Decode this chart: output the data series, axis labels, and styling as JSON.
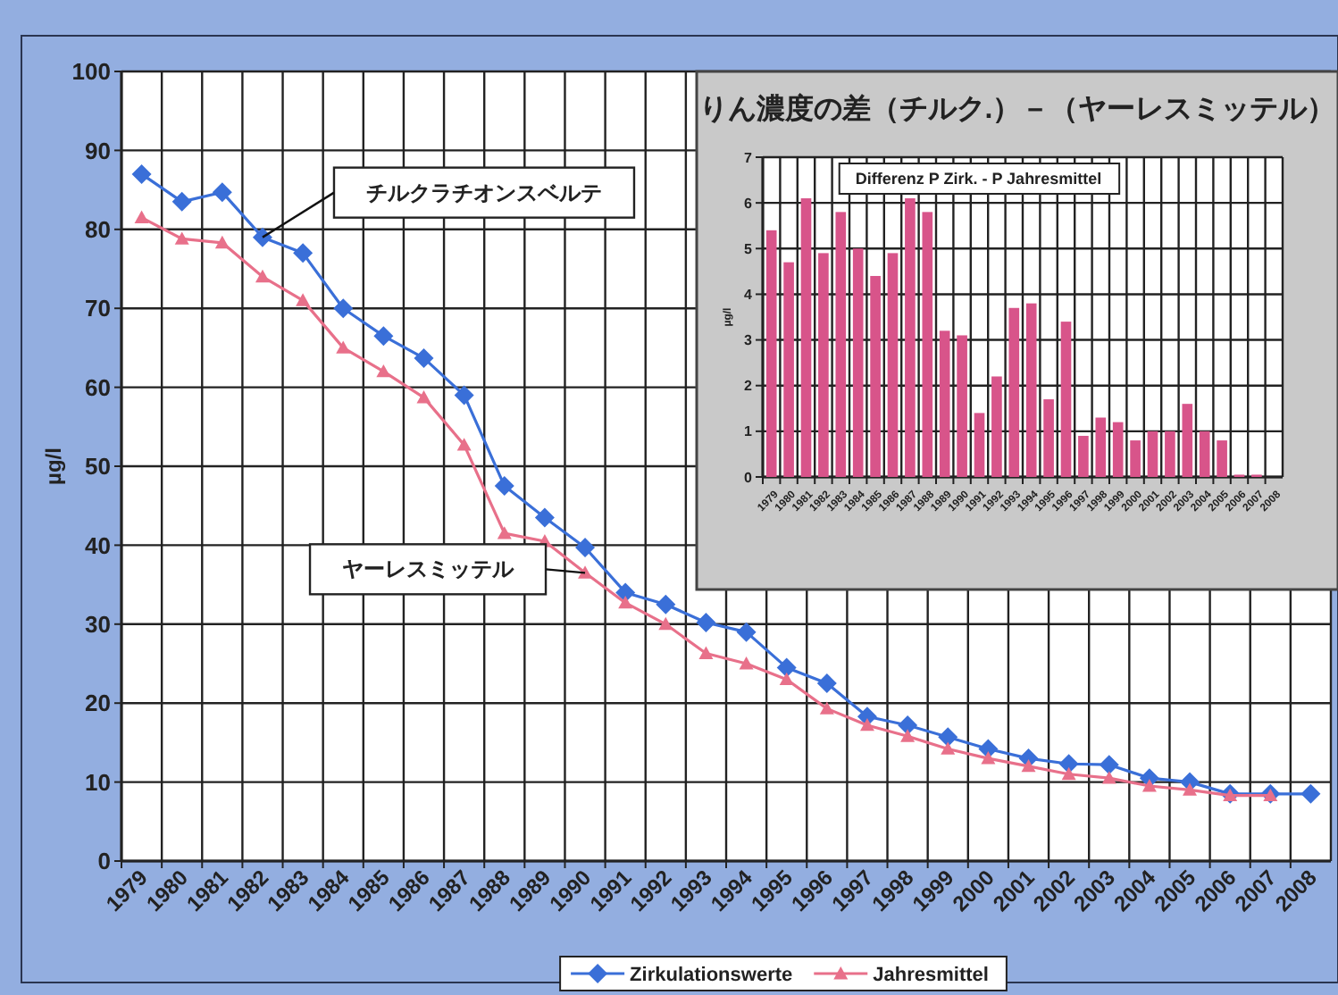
{
  "chart_data": [
    {
      "type": "line",
      "ylabel": "µg/l",
      "categories": [
        "1979",
        "1980",
        "1981",
        "1982",
        "1983",
        "1984",
        "1985",
        "1986",
        "1987",
        "1988",
        "1989",
        "1990",
        "1991",
        "1992",
        "1993",
        "1994",
        "1995",
        "1996",
        "1997",
        "1998",
        "1999",
        "2000",
        "2001",
        "2002",
        "2003",
        "2004",
        "2005",
        "2006",
        "2007",
        "2008"
      ],
      "series": [
        {
          "name": "Zirkulationswerte",
          "color": "#3a6fd8",
          "marker": "diamond",
          "values": [
            87,
            83.5,
            84.7,
            79,
            77,
            70,
            66.5,
            63.7,
            59,
            47.5,
            43.5,
            39.7,
            34,
            32.5,
            30.2,
            29,
            24.5,
            22.5,
            18.3,
            17.2,
            15.7,
            14.2,
            13,
            12.3,
            12.2,
            10.5,
            10,
            8.5,
            8.5,
            8.5
          ]
        },
        {
          "name": "Jahresmittel",
          "color": "#e8708a",
          "marker": "triangle",
          "values": [
            81.5,
            78.8,
            78.3,
            74,
            71,
            65,
            62,
            58.7,
            52.7,
            41.5,
            40.5,
            36.5,
            32.7,
            30,
            26.3,
            25,
            23,
            19.3,
            17.2,
            15.8,
            14.2,
            13,
            12,
            11,
            10.5,
            9.5,
            9,
            8.3,
            8.3,
            null
          ]
        }
      ],
      "ylim": [
        0,
        100
      ],
      "yticks": [
        0,
        10,
        20,
        30,
        40,
        50,
        60,
        70,
        80,
        90,
        100
      ],
      "grid": true,
      "legend": "bottom",
      "annotations": [
        "チルクラチオンスベルテ",
        "ヤーレスミッテル"
      ]
    },
    {
      "type": "bar",
      "title": "りん濃度の差（チルク.）－（ヤーレスミッテル）",
      "ylabel": "µg/l",
      "categories": [
        "1979",
        "1980",
        "1981",
        "1982",
        "1983",
        "1984",
        "1985",
        "1986",
        "1987",
        "1988",
        "1989",
        "1990",
        "1991",
        "1992",
        "1993",
        "1994",
        "1995",
        "1996",
        "1997",
        "1998",
        "1999",
        "2000",
        "2001",
        "2002",
        "2003",
        "2004",
        "2005",
        "2006",
        "2007",
        "2008"
      ],
      "series": [
        {
          "name": "Differenz P Zirk. - P Jahresmittel",
          "color": "#d8548a",
          "values": [
            5.4,
            4.7,
            6.1,
            4.9,
            5.8,
            5.0,
            4.4,
            4.9,
            6.1,
            5.8,
            3.2,
            3.1,
            1.4,
            2.2,
            3.7,
            3.8,
            1.7,
            3.4,
            0.9,
            1.3,
            1.2,
            0.8,
            1.0,
            1.0,
            1.6,
            1.0,
            0.8,
            0.05,
            0.05,
            null
          ]
        }
      ],
      "ylim": [
        0,
        7
      ],
      "yticks": [
        0,
        1,
        2,
        3,
        4,
        5,
        6,
        7
      ],
      "grid": true,
      "legend": "top"
    }
  ]
}
